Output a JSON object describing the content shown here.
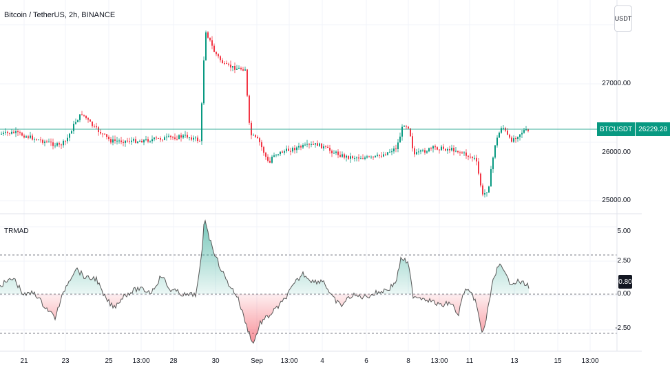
{
  "chart": {
    "symbol_title": "Bitcoin / TetherUS, 2h, BINANCE",
    "currency_label": "USDT",
    "price_ticks": [
      "27000.00",
      "26000.00",
      "25000.00"
    ],
    "last_price_symbol": "BTCUSDT",
    "last_price_value": "26229.28",
    "colors": {
      "up": "#089981",
      "down": "#f23645",
      "level": "#089981"
    }
  },
  "indicator": {
    "title": "TRMAD",
    "ticks": [
      "5.00",
      "2.50",
      "0.00",
      "-2.50"
    ],
    "current_value": "0.80",
    "colors": {
      "line": "#555555",
      "fill_pos": "#089981",
      "fill_neg": "#f23645"
    }
  },
  "time_axis": {
    "labels": [
      "21",
      "23",
      "25",
      "13:00",
      "28",
      "30",
      "Sep",
      "13:00",
      "4",
      "6",
      "8",
      "13:00",
      "11",
      "13",
      "15",
      "13:00"
    ]
  }
}
